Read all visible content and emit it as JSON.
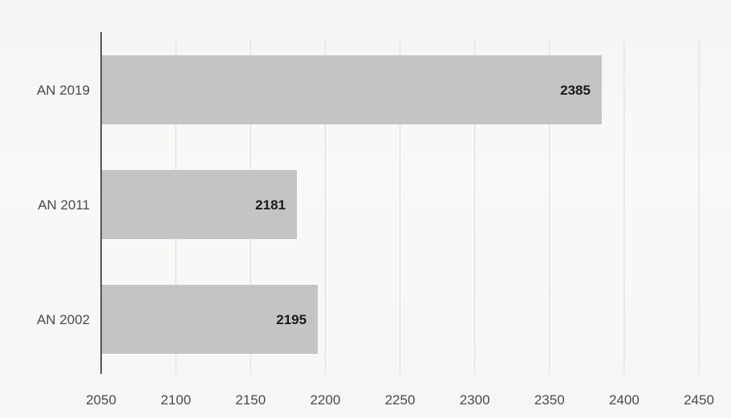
{
  "chart_data": {
    "type": "bar",
    "orientation": "horizontal",
    "categories": [
      "AN 2019",
      "AN 2011",
      "AN 2002"
    ],
    "values": [
      2385,
      2181,
      2195
    ],
    "title": "",
    "xlabel": "",
    "ylabel": "",
    "xlim": [
      2050,
      2450
    ],
    "x_ticks": [
      "2050",
      "2100",
      "2150",
      "2200",
      "2250",
      "2300",
      "2350",
      "2400",
      "2450"
    ],
    "data_labels": [
      "2385",
      "2181",
      "2195"
    ],
    "grid": true,
    "legend": "none",
    "bar_color": "#c4c4c4",
    "grid_color": "#dcdcdc",
    "axis_color": "#555555"
  }
}
